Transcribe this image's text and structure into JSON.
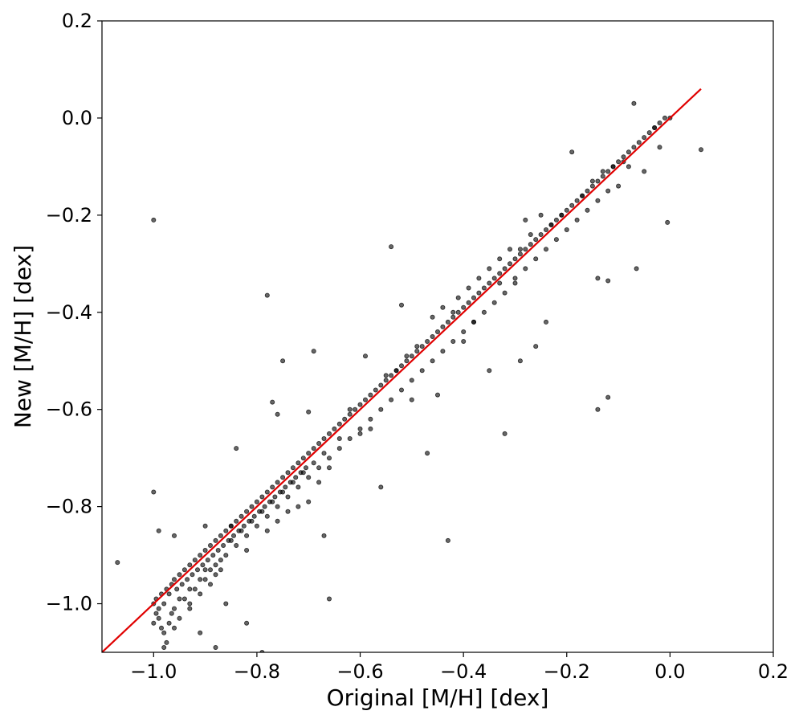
{
  "chart_data": {
    "type": "scatter",
    "title": "",
    "xlabel": "Original [M/H] [dex]",
    "ylabel": "New [M/H] [dex]",
    "xlim": [
      -1.1,
      0.2
    ],
    "ylim": [
      -1.1,
      0.2
    ],
    "xticks": [
      -1.0,
      -0.8,
      -0.6,
      -0.4,
      -0.2,
      0.0,
      0.2
    ],
    "yticks": [
      -1.0,
      -0.8,
      -0.6,
      -0.4,
      -0.2,
      0.0,
      0.2
    ],
    "xtick_labels": [
      "−1.0",
      "−0.8",
      "−0.6",
      "−0.4",
      "−0.2",
      "0.0",
      "0.2"
    ],
    "ytick_labels": [
      "−1.0",
      "−0.8",
      "−0.6",
      "−0.4",
      "−0.2",
      "0.0",
      "0.2"
    ],
    "grid": false,
    "legend": "none",
    "colors": {
      "points": "#000000",
      "fit_line": "#e00000"
    },
    "fit_line": {
      "slope": 1.0,
      "intercept": 0.0,
      "x": [
        -1.1,
        0.06
      ]
    },
    "series": [
      {
        "points": [
          [
            -1.0,
            -1.0
          ],
          [
            -0.995,
            -0.99
          ],
          [
            -0.99,
            -1.01
          ],
          [
            -0.985,
            -0.98
          ],
          [
            -0.98,
            -1.0
          ],
          [
            -0.975,
            -0.97
          ],
          [
            -0.99,
            -1.03
          ],
          [
            -0.995,
            -1.02
          ],
          [
            -1.0,
            -1.04
          ],
          [
            -0.985,
            -1.05
          ],
          [
            -0.97,
            -0.98
          ],
          [
            -0.965,
            -0.96
          ],
          [
            -0.96,
            -0.95
          ],
          [
            -0.955,
            -0.97
          ],
          [
            -0.95,
            -0.94
          ],
          [
            -0.945,
            -0.96
          ],
          [
            -0.94,
            -0.93
          ],
          [
            -0.935,
            -0.95
          ],
          [
            -0.93,
            -0.92
          ],
          [
            -0.925,
            -0.94
          ],
          [
            -0.92,
            -0.91
          ],
          [
            -0.915,
            -0.93
          ],
          [
            -0.91,
            -0.9
          ],
          [
            -0.905,
            -0.92
          ],
          [
            -0.9,
            -0.89
          ],
          [
            -0.895,
            -0.91
          ],
          [
            -0.89,
            -0.88
          ],
          [
            -0.885,
            -0.9
          ],
          [
            -0.88,
            -0.87
          ],
          [
            -0.875,
            -0.89
          ],
          [
            -0.87,
            -0.86
          ],
          [
            -0.865,
            -0.88
          ],
          [
            -0.86,
            -0.85
          ],
          [
            -0.855,
            -0.87
          ],
          [
            -0.85,
            -0.84
          ],
          [
            -0.845,
            -0.86
          ],
          [
            -0.84,
            -0.83
          ],
          [
            -0.835,
            -0.85
          ],
          [
            -0.83,
            -0.82
          ],
          [
            -0.825,
            -0.84
          ],
          [
            -0.82,
            -0.81
          ],
          [
            -0.815,
            -0.83
          ],
          [
            -0.81,
            -0.8
          ],
          [
            -0.805,
            -0.82
          ],
          [
            -0.8,
            -0.79
          ],
          [
            -0.795,
            -0.81
          ],
          [
            -0.79,
            -0.78
          ],
          [
            -0.785,
            -0.8
          ],
          [
            -0.78,
            -0.77
          ],
          [
            -0.775,
            -0.79
          ],
          [
            -0.77,
            -0.76
          ],
          [
            -0.765,
            -0.78
          ],
          [
            -0.76,
            -0.75
          ],
          [
            -0.755,
            -0.77
          ],
          [
            -0.75,
            -0.74
          ],
          [
            -0.745,
            -0.76
          ],
          [
            -0.74,
            -0.73
          ],
          [
            -0.735,
            -0.75
          ],
          [
            -0.73,
            -0.72
          ],
          [
            -0.725,
            -0.74
          ],
          [
            -0.72,
            -0.71
          ],
          [
            -0.715,
            -0.73
          ],
          [
            -0.71,
            -0.7
          ],
          [
            -0.705,
            -0.72
          ],
          [
            -0.7,
            -0.69
          ],
          [
            -0.69,
            -0.68
          ],
          [
            -0.68,
            -0.67
          ],
          [
            -0.67,
            -0.66
          ],
          [
            -0.66,
            -0.65
          ],
          [
            -0.65,
            -0.64
          ],
          [
            -0.64,
            -0.63
          ],
          [
            -0.63,
            -0.62
          ],
          [
            -0.62,
            -0.61
          ],
          [
            -0.61,
            -0.6
          ],
          [
            -0.6,
            -0.59
          ],
          [
            -0.59,
            -0.58
          ],
          [
            -0.58,
            -0.57
          ],
          [
            -0.57,
            -0.56
          ],
          [
            -0.56,
            -0.55
          ],
          [
            -0.55,
            -0.54
          ],
          [
            -0.54,
            -0.53
          ],
          [
            -0.53,
            -0.52
          ],
          [
            -0.52,
            -0.51
          ],
          [
            -0.51,
            -0.5
          ],
          [
            -0.5,
            -0.49
          ],
          [
            -0.49,
            -0.48
          ],
          [
            -0.48,
            -0.47
          ],
          [
            -0.47,
            -0.46
          ],
          [
            -0.46,
            -0.45
          ],
          [
            -0.45,
            -0.44
          ],
          [
            -0.44,
            -0.43
          ],
          [
            -0.43,
            -0.42
          ],
          [
            -0.42,
            -0.41
          ],
          [
            -0.41,
            -0.4
          ],
          [
            -0.4,
            -0.39
          ],
          [
            -0.39,
            -0.38
          ],
          [
            -0.38,
            -0.37
          ],
          [
            -0.37,
            -0.36
          ],
          [
            -0.36,
            -0.35
          ],
          [
            -0.35,
            -0.34
          ],
          [
            -0.34,
            -0.33
          ],
          [
            -0.33,
            -0.32
          ],
          [
            -0.32,
            -0.31
          ],
          [
            -0.31,
            -0.3
          ],
          [
            -0.3,
            -0.29
          ],
          [
            -0.29,
            -0.28
          ],
          [
            -0.28,
            -0.27
          ],
          [
            -0.27,
            -0.26
          ],
          [
            -0.26,
            -0.25
          ],
          [
            -0.25,
            -0.24
          ],
          [
            -0.24,
            -0.23
          ],
          [
            -0.23,
            -0.22
          ],
          [
            -0.22,
            -0.21
          ],
          [
            -0.21,
            -0.2
          ],
          [
            -0.2,
            -0.19
          ],
          [
            -0.19,
            -0.18
          ],
          [
            -0.18,
            -0.17
          ],
          [
            -0.17,
            -0.16
          ],
          [
            -0.16,
            -0.15
          ],
          [
            -0.15,
            -0.14
          ],
          [
            -0.14,
            -0.13
          ],
          [
            -0.13,
            -0.12
          ],
          [
            -0.12,
            -0.11
          ],
          [
            -0.11,
            -0.1
          ],
          [
            -0.1,
            -0.09
          ],
          [
            -0.09,
            -0.08
          ],
          [
            -0.08,
            -0.07
          ],
          [
            -0.07,
            -0.06
          ],
          [
            -0.06,
            -0.05
          ],
          [
            -0.05,
            -0.04
          ],
          [
            -0.04,
            -0.03
          ],
          [
            -0.03,
            -0.02
          ],
          [
            -0.02,
            -0.01
          ],
          [
            -0.01,
            0.0
          ],
          [
            0.0,
            0.0
          ],
          [
            -0.9,
            -0.93
          ],
          [
            -0.88,
            -0.92
          ],
          [
            -0.86,
            -0.9
          ],
          [
            -0.84,
            -0.88
          ],
          [
            -0.82,
            -0.86
          ],
          [
            -0.8,
            -0.84
          ],
          [
            -0.78,
            -0.82
          ],
          [
            -0.76,
            -0.8
          ],
          [
            -0.74,
            -0.78
          ],
          [
            -0.72,
            -0.76
          ],
          [
            -0.7,
            -0.74
          ],
          [
            -0.68,
            -0.72
          ],
          [
            -0.66,
            -0.7
          ],
          [
            -0.64,
            -0.68
          ],
          [
            -0.62,
            -0.66
          ],
          [
            -0.6,
            -0.64
          ],
          [
            -0.58,
            -0.62
          ],
          [
            -0.56,
            -0.6
          ],
          [
            -0.54,
            -0.58
          ],
          [
            -0.52,
            -0.56
          ],
          [
            -0.5,
            -0.54
          ],
          [
            -0.48,
            -0.52
          ],
          [
            -0.46,
            -0.5
          ],
          [
            -0.44,
            -0.48
          ],
          [
            -0.42,
            -0.46
          ],
          [
            -0.4,
            -0.44
          ],
          [
            -0.38,
            -0.42
          ],
          [
            -0.36,
            -0.4
          ],
          [
            -0.34,
            -0.38
          ],
          [
            -0.32,
            -0.36
          ],
          [
            -0.3,
            -0.33
          ],
          [
            -0.28,
            -0.31
          ],
          [
            -0.26,
            -0.29
          ],
          [
            -0.24,
            -0.27
          ],
          [
            -0.22,
            -0.25
          ],
          [
            -0.2,
            -0.23
          ],
          [
            -0.18,
            -0.21
          ],
          [
            -0.16,
            -0.19
          ],
          [
            -0.14,
            -0.17
          ],
          [
            -0.12,
            -0.15
          ],
          [
            -0.85,
            -0.87
          ],
          [
            -0.83,
            -0.85
          ],
          [
            -0.81,
            -0.83
          ],
          [
            -0.79,
            -0.81
          ],
          [
            -0.77,
            -0.79
          ],
          [
            -0.75,
            -0.77
          ],
          [
            -0.73,
            -0.75
          ],
          [
            -0.71,
            -0.73
          ],
          [
            -0.69,
            -0.71
          ],
          [
            -0.67,
            -0.69
          ],
          [
            -0.95,
            -0.99
          ],
          [
            -0.93,
            -0.97
          ],
          [
            -0.91,
            -0.95
          ],
          [
            -0.89,
            -0.93
          ],
          [
            -0.87,
            -0.91
          ],
          [
            -0.96,
            -1.01
          ],
          [
            -0.94,
            -0.99
          ],
          [
            -0.92,
            -0.97
          ],
          [
            -0.9,
            -0.95
          ],
          [
            -0.88,
            -0.94
          ],
          [
            -0.98,
            -1.06
          ],
          [
            -0.975,
            -1.08
          ],
          [
            -0.97,
            -1.04
          ],
          [
            -0.965,
            -1.02
          ],
          [
            -0.96,
            -1.05
          ],
          [
            -1.0,
            -0.21
          ],
          [
            -1.0,
            -0.77
          ],
          [
            -0.99,
            -0.85
          ],
          [
            -1.07,
            -0.915
          ],
          [
            -0.78,
            -0.365
          ],
          [
            -0.75,
            -0.5
          ],
          [
            -0.69,
            -0.48
          ],
          [
            -0.77,
            -0.585
          ],
          [
            -0.76,
            -0.61
          ],
          [
            -0.84,
            -0.68
          ],
          [
            -0.7,
            -0.605
          ],
          [
            -0.59,
            -0.49
          ],
          [
            -0.54,
            -0.265
          ],
          [
            -0.52,
            -0.385
          ],
          [
            -0.5,
            -0.58
          ],
          [
            -0.45,
            -0.57
          ],
          [
            -0.43,
            -0.87
          ],
          [
            -0.47,
            -0.69
          ],
          [
            -0.56,
            -0.76
          ],
          [
            -0.35,
            -0.52
          ],
          [
            -0.32,
            -0.65
          ],
          [
            -0.29,
            -0.5
          ],
          [
            -0.28,
            -0.21
          ],
          [
            -0.25,
            -0.2
          ],
          [
            -0.19,
            -0.07
          ],
          [
            -0.14,
            -0.33
          ],
          [
            -0.12,
            -0.335
          ],
          [
            -0.07,
            0.03
          ],
          [
            -0.065,
            -0.31
          ],
          [
            -0.005,
            -0.215
          ],
          [
            -0.14,
            -0.6
          ],
          [
            -0.12,
            -0.575
          ],
          [
            0.06,
            -0.065
          ],
          [
            -0.24,
            -0.42
          ],
          [
            -0.26,
            -0.47
          ],
          [
            -0.3,
            -0.34
          ],
          [
            -0.33,
            -0.34
          ],
          [
            -0.38,
            -0.42
          ],
          [
            -0.4,
            -0.46
          ],
          [
            -0.42,
            -0.4
          ],
          [
            -0.62,
            -0.6
          ],
          [
            -0.64,
            -0.66
          ],
          [
            -0.66,
            -0.72
          ],
          [
            -0.68,
            -0.75
          ],
          [
            -0.7,
            -0.79
          ],
          [
            -0.72,
            -0.8
          ],
          [
            -0.74,
            -0.81
          ],
          [
            -0.76,
            -0.83
          ],
          [
            -0.78,
            -0.85
          ],
          [
            -0.82,
            -0.89
          ],
          [
            -0.87,
            -0.93
          ],
          [
            -0.89,
            -0.96
          ],
          [
            -0.91,
            -0.98
          ],
          [
            -0.93,
            -1.0
          ],
          [
            -0.95,
            -1.03
          ],
          [
            -0.66,
            -0.99
          ],
          [
            -0.82,
            -1.04
          ],
          [
            -0.86,
            -1.0
          ],
          [
            -0.79,
            -1.1
          ],
          [
            -0.88,
            -1.09
          ],
          [
            -0.91,
            -1.06
          ],
          [
            -0.93,
            -1.01
          ],
          [
            -0.98,
            -1.09
          ],
          [
            -0.96,
            -0.86
          ],
          [
            -0.9,
            -0.84
          ],
          [
            -0.85,
            -0.84
          ],
          [
            -0.67,
            -0.86
          ],
          [
            -0.6,
            -0.65
          ],
          [
            -0.58,
            -0.64
          ],
          [
            -0.55,
            -0.53
          ],
          [
            -0.53,
            -0.52
          ],
          [
            -0.51,
            -0.49
          ],
          [
            -0.49,
            -0.47
          ],
          [
            -0.46,
            -0.41
          ],
          [
            -0.44,
            -0.39
          ],
          [
            -0.41,
            -0.37
          ],
          [
            -0.39,
            -0.35
          ],
          [
            -0.37,
            -0.33
          ],
          [
            -0.35,
            -0.31
          ],
          [
            -0.33,
            -0.29
          ],
          [
            -0.31,
            -0.27
          ],
          [
            -0.29,
            -0.27
          ],
          [
            -0.27,
            -0.24
          ],
          [
            -0.23,
            -0.22
          ],
          [
            -0.21,
            -0.2
          ],
          [
            -0.17,
            -0.16
          ],
          [
            -0.15,
            -0.13
          ],
          [
            -0.13,
            -0.11
          ],
          [
            -0.11,
            -0.1
          ],
          [
            -0.09,
            -0.09
          ],
          [
            -0.08,
            -0.1
          ],
          [
            -0.05,
            -0.11
          ],
          [
            -0.03,
            -0.02
          ],
          [
            -0.02,
            -0.06
          ],
          [
            -0.1,
            -0.14
          ]
        ]
      }
    ]
  }
}
